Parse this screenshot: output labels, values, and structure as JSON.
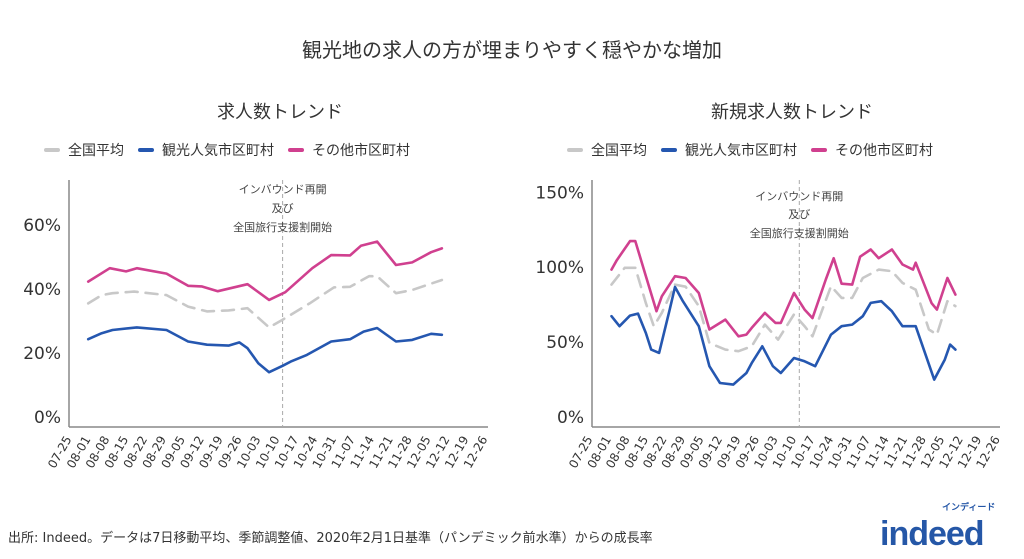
{
  "title": "観光地の求人の方が埋まりやすく穏やかな増加",
  "footer": "出所: Indeed。データは7日移動平均、季節調整値、2020年2月1日基準（パンデミック前水準）からの成長率",
  "logo": {
    "text": "indeed",
    "kana": "インディード",
    "color": "#2557a7"
  },
  "colors": {
    "全国平均": "#c8c8c8",
    "観光人気市区町村": "#2557b0",
    "その他市区町村": "#d0408f"
  },
  "chart_data": [
    {
      "type": "line",
      "title": "求人数トレンド",
      "legend": [
        "全国平均",
        "観光人気市区町村",
        "その他市区町村"
      ],
      "legend_position": "top",
      "ylim": [
        -3,
        73
      ],
      "yticks": [
        0,
        20,
        40,
        60
      ],
      "ytick_labels": [
        "0%",
        "20%",
        "40%",
        "60%"
      ],
      "xticks": [
        "07-25",
        "08-01",
        "08-08",
        "08-15",
        "08-22",
        "08-29",
        "09-05",
        "09-12",
        "09-19",
        "09-26",
        "10-03",
        "10-10",
        "10-17",
        "10-24",
        "10-31",
        "11-07",
        "11-14",
        "11-21",
        "11-28",
        "12-05",
        "12-12",
        "12-19",
        "12-26"
      ],
      "annotation": {
        "date": "10-11",
        "lines": [
          "インバウンド再開",
          "及び",
          "全国旅行支援割開始"
        ]
      },
      "grid": false,
      "series": [
        {
          "name": "全国平均",
          "dashed": true,
          "points": [
            [
              "07-31",
              35.5
            ],
            [
              "08-05",
              38.1
            ],
            [
              "08-09",
              38.7
            ],
            [
              "08-17",
              39.2
            ],
            [
              "08-29",
              38.1
            ],
            [
              "09-06",
              34.5
            ],
            [
              "09-13",
              33
            ],
            [
              "09-21",
              33.3
            ],
            [
              "09-28",
              34
            ],
            [
              "10-06",
              28
            ],
            [
              "10-11",
              30.4
            ],
            [
              "10-21",
              35.5
            ],
            [
              "10-30",
              40.5
            ],
            [
              "11-05",
              40.7
            ],
            [
              "11-12",
              44
            ],
            [
              "11-15",
              44
            ],
            [
              "11-22",
              38.7
            ],
            [
              "11-28",
              39.7
            ],
            [
              "12-09",
              42.8
            ]
          ]
        },
        {
          "name": "観光人気市区町村",
          "dashed": false,
          "points": [
            [
              "07-31",
              24.3
            ],
            [
              "08-05",
              26.2
            ],
            [
              "08-09",
              27.2
            ],
            [
              "08-18",
              28
            ],
            [
              "08-29",
              27.2
            ],
            [
              "09-06",
              23.6
            ],
            [
              "09-13",
              22.6
            ],
            [
              "09-21",
              22.3
            ],
            [
              "09-25",
              23.3
            ],
            [
              "09-28",
              21.5
            ],
            [
              "10-02",
              16.8
            ],
            [
              "10-06",
              14
            ],
            [
              "10-11",
              16
            ],
            [
              "10-14",
              17.3
            ],
            [
              "10-20",
              19.4
            ],
            [
              "10-29",
              23.6
            ],
            [
              "11-05",
              24.3
            ],
            [
              "11-10",
              26.7
            ],
            [
              "11-15",
              27.8
            ],
            [
              "11-22",
              23.6
            ],
            [
              "11-28",
              24.1
            ],
            [
              "12-05",
              26
            ],
            [
              "12-09",
              25.7
            ]
          ]
        },
        {
          "name": "その他市区町村",
          "dashed": false,
          "points": [
            [
              "07-31",
              42.3
            ],
            [
              "08-08",
              46.5
            ],
            [
              "08-14",
              45.5
            ],
            [
              "08-18",
              46.5
            ],
            [
              "08-29",
              44.8
            ],
            [
              "09-06",
              41
            ],
            [
              "09-11",
              40.8
            ],
            [
              "09-17",
              39.3
            ],
            [
              "09-28",
              41.5
            ],
            [
              "10-06",
              36.6
            ],
            [
              "10-12",
              39
            ],
            [
              "10-22",
              46.5
            ],
            [
              "10-29",
              50.6
            ],
            [
              "11-05",
              50.5
            ],
            [
              "11-09",
              53.5
            ],
            [
              "11-15",
              54.8
            ],
            [
              "11-22",
              47.5
            ],
            [
              "11-28",
              48.3
            ],
            [
              "12-05",
              51.5
            ],
            [
              "12-09",
              52.7
            ]
          ]
        }
      ]
    },
    {
      "type": "line",
      "title": "新規求人数トレンド",
      "legend": [
        "全国平均",
        "観光人気市区町村",
        "その他市区町村"
      ],
      "legend_position": "top",
      "ylim": [
        -7,
        158
      ],
      "yticks": [
        0,
        50,
        100,
        150
      ],
      "ytick_labels": [
        "0%",
        "50%",
        "100%",
        "150%"
      ],
      "xticks": [
        "07-25",
        "08-01",
        "08-08",
        "08-15",
        "08-22",
        "08-29",
        "09-05",
        "09-12",
        "09-19",
        "09-26",
        "10-03",
        "10-10",
        "10-17",
        "10-24",
        "10-31",
        "11-07",
        "11-14",
        "11-21",
        "11-28",
        "12-05",
        "12-12",
        "12-19",
        "12-26"
      ],
      "annotation": {
        "date": "10-11",
        "lines": [
          "インバウンド再開",
          "及び",
          "全国旅行支援割開始"
        ]
      },
      "grid": false,
      "series": [
        {
          "name": "全国平均",
          "dashed": true,
          "points": [
            [
              "08-01",
              88.4
            ],
            [
              "08-06",
              99.6
            ],
            [
              "08-10",
              99.6
            ],
            [
              "08-14",
              76
            ],
            [
              "08-17",
              60.6
            ],
            [
              "08-20",
              69.5
            ],
            [
              "08-25",
              88.4
            ],
            [
              "08-29",
              87
            ],
            [
              "09-03",
              74
            ],
            [
              "09-07",
              49.4
            ],
            [
              "09-13",
              45
            ],
            [
              "09-18",
              43.9
            ],
            [
              "09-23",
              47.2
            ],
            [
              "09-28",
              61.7
            ],
            [
              "10-03",
              51.7
            ],
            [
              "10-09",
              68.5
            ],
            [
              "10-13",
              60.6
            ],
            [
              "10-16",
              53.9
            ],
            [
              "10-23",
              87.3
            ],
            [
              "10-27",
              79.5
            ],
            [
              "10-31",
              79.5
            ],
            [
              "11-04",
              92.8
            ],
            [
              "11-10",
              98.4
            ],
            [
              "11-15",
              97.3
            ],
            [
              "11-19",
              89.5
            ],
            [
              "11-24",
              85
            ],
            [
              "11-29",
              58.4
            ],
            [
              "12-02",
              55
            ],
            [
              "12-06",
              77.3
            ],
            [
              "12-09",
              74
            ]
          ]
        },
        {
          "name": "観光人気市区町村",
          "dashed": false,
          "points": [
            [
              "08-01",
              67.3
            ],
            [
              "08-04",
              60.6
            ],
            [
              "08-08",
              67.7
            ],
            [
              "08-11",
              69
            ],
            [
              "08-14",
              56
            ],
            [
              "08-16",
              45
            ],
            [
              "08-19",
              42.8
            ],
            [
              "08-23",
              71.7
            ],
            [
              "08-25",
              86.8
            ],
            [
              "08-28",
              77.3
            ],
            [
              "09-03",
              60.6
            ],
            [
              "09-07",
              33.9
            ],
            [
              "09-11",
              22.7
            ],
            [
              "09-16",
              21.6
            ],
            [
              "09-21",
              29.4
            ],
            [
              "09-23",
              36
            ],
            [
              "09-27",
              47.2
            ],
            [
              "10-01",
              33.9
            ],
            [
              "10-04",
              29.4
            ],
            [
              "10-09",
              39.4
            ],
            [
              "10-13",
              37.2
            ],
            [
              "10-17",
              33.9
            ],
            [
              "10-23",
              55
            ],
            [
              "10-27",
              60.6
            ],
            [
              "10-31",
              61.7
            ],
            [
              "11-04",
              67.3
            ],
            [
              "11-07",
              76.2
            ],
            [
              "11-11",
              77.3
            ],
            [
              "11-15",
              70.6
            ],
            [
              "11-19",
              60.6
            ],
            [
              "11-24",
              60.6
            ],
            [
              "12-01",
              25
            ],
            [
              "12-05",
              38.3
            ],
            [
              "12-07",
              48.3
            ],
            [
              "12-09",
              45
            ]
          ]
        },
        {
          "name": "その他市区町村",
          "dashed": false,
          "points": [
            [
              "08-01",
              98.4
            ],
            [
              "08-03",
              104.7
            ],
            [
              "08-08",
              117.4
            ],
            [
              "08-10",
              117.4
            ],
            [
              "08-14",
              94
            ],
            [
              "08-18",
              70.6
            ],
            [
              "08-20",
              80.6
            ],
            [
              "08-25",
              94
            ],
            [
              "08-29",
              92.8
            ],
            [
              "09-03",
              82.8
            ],
            [
              "09-07",
              58.4
            ],
            [
              "09-13",
              65
            ],
            [
              "09-18",
              53.9
            ],
            [
              "09-21",
              55
            ],
            [
              "09-23",
              59.5
            ],
            [
              "09-28",
              69.5
            ],
            [
              "10-02",
              62.8
            ],
            [
              "10-04",
              62.8
            ],
            [
              "10-09",
              82.8
            ],
            [
              "10-13",
              71.7
            ],
            [
              "10-16",
              66
            ],
            [
              "10-21",
              91.8
            ],
            [
              "10-24",
              106
            ],
            [
              "10-27",
              89
            ],
            [
              "10-31",
              88.4
            ],
            [
              "11-03",
              107
            ],
            [
              "11-07",
              111.8
            ],
            [
              "11-10",
              106
            ],
            [
              "11-15",
              111.8
            ],
            [
              "11-19",
              101.8
            ],
            [
              "11-23",
              98.4
            ],
            [
              "11-24",
              103
            ],
            [
              "11-30",
              76
            ],
            [
              "12-02",
              71.7
            ],
            [
              "12-06",
              92.8
            ],
            [
              "12-09",
              81.7
            ]
          ]
        }
      ]
    }
  ]
}
